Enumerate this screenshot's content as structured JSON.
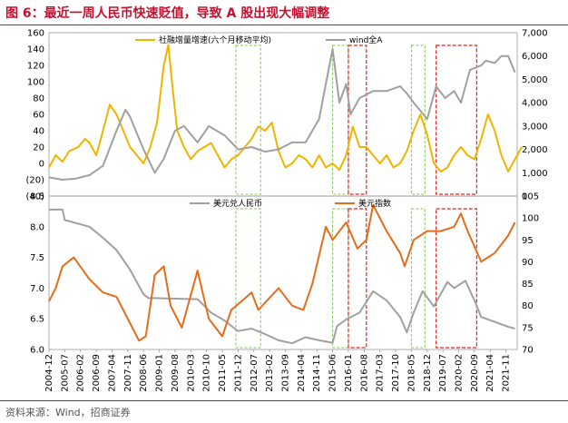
{
  "header": {
    "title": "图 6：最近一周人民币快速贬值，导致 A 股出现大幅调整"
  },
  "footer": {
    "source": "资料来源：Wind，招商证券"
  },
  "chart_data": [
    {
      "type": "line",
      "title": "",
      "legend": "top",
      "x_dates": [
        "2004-12",
        "2005-12",
        "2006-12",
        "2007-12",
        "2008-12",
        "2009-12",
        "2010-12",
        "2011-12",
        "2012-12",
        "2013-12",
        "2014-12",
        "2015-12",
        "2016-12",
        "2017-12",
        "2018-12",
        "2019-12",
        "2020-12",
        "2021-12"
      ],
      "y_left_lim": [
        -40,
        160
      ],
      "y_left_ticks": [
        "160",
        "140",
        "120",
        "100",
        "80",
        "60",
        "40",
        "20",
        "0",
        "(20)",
        "(40)"
      ],
      "y_right_lim": [
        0,
        7000
      ],
      "y_right_ticks": [
        "7,000",
        "6,000",
        "5,000",
        "4,000",
        "3,000",
        "2,000",
        "1,000",
        "0"
      ],
      "series": [
        {
          "name": "社融增量增速(六个月移动平均)",
          "axis": "left",
          "color": "#f0b400",
          "points": [
            [
              "2004-12",
              -5
            ],
            [
              "2005-03",
              10
            ],
            [
              "2005-06",
              2
            ],
            [
              "2005-09",
              15
            ],
            [
              "2006-01",
              20
            ],
            [
              "2006-04",
              30
            ],
            [
              "2006-06",
              25
            ],
            [
              "2006-09",
              10
            ],
            [
              "2006-12",
              40
            ],
            [
              "2007-03",
              72
            ],
            [
              "2007-06",
              60
            ],
            [
              "2007-09",
              40
            ],
            [
              "2007-12",
              20
            ],
            [
              "2008-03",
              10
            ],
            [
              "2008-06",
              0
            ],
            [
              "2008-09",
              20
            ],
            [
              "2008-12",
              50
            ],
            [
              "2009-03",
              120
            ],
            [
              "2009-05",
              145
            ],
            [
              "2009-07",
              90
            ],
            [
              "2009-09",
              40
            ],
            [
              "2009-12",
              20
            ],
            [
              "2010-03",
              5
            ],
            [
              "2010-06",
              15
            ],
            [
              "2010-09",
              20
            ],
            [
              "2010-12",
              25
            ],
            [
              "2011-03",
              10
            ],
            [
              "2011-06",
              -5
            ],
            [
              "2011-09",
              5
            ],
            [
              "2011-12",
              10
            ],
            [
              "2012-03",
              20
            ],
            [
              "2012-06",
              30
            ],
            [
              "2012-09",
              45
            ],
            [
              "2012-12",
              40
            ],
            [
              "2013-03",
              50
            ],
            [
              "2013-06",
              15
            ],
            [
              "2013-09",
              -5
            ],
            [
              "2013-12",
              0
            ],
            [
              "2014-03",
              10
            ],
            [
              "2014-06",
              5
            ],
            [
              "2014-09",
              -5
            ],
            [
              "2014-12",
              10
            ],
            [
              "2015-03",
              -5
            ],
            [
              "2015-06",
              0
            ],
            [
              "2015-09",
              -8
            ],
            [
              "2015-12",
              10
            ],
            [
              "2016-03",
              45
            ],
            [
              "2016-06",
              20
            ],
            [
              "2016-09",
              20
            ],
            [
              "2016-12",
              10
            ],
            [
              "2017-03",
              0
            ],
            [
              "2017-06",
              10
            ],
            [
              "2017-09",
              -5
            ],
            [
              "2017-12",
              0
            ],
            [
              "2018-03",
              15
            ],
            [
              "2018-06",
              40
            ],
            [
              "2018-09",
              60
            ],
            [
              "2018-12",
              35
            ],
            [
              "2019-03",
              0
            ],
            [
              "2019-06",
              -10
            ],
            [
              "2019-09",
              -5
            ],
            [
              "2019-12",
              10
            ],
            [
              "2020-03",
              20
            ],
            [
              "2020-06",
              10
            ],
            [
              "2020-09",
              5
            ],
            [
              "2020-12",
              30
            ],
            [
              "2021-03",
              60
            ],
            [
              "2021-06",
              40
            ],
            [
              "2021-09",
              10
            ],
            [
              "2021-12",
              -10
            ],
            [
              "2022-03",
              5
            ],
            [
              "2022-06",
              20
            ]
          ]
        },
        {
          "name": "wind全A",
          "axis": "right",
          "color": "#a0a0a0",
          "points": [
            [
              "2004-12",
              800
            ],
            [
              "2005-06",
              700
            ],
            [
              "2005-12",
              750
            ],
            [
              "2006-06",
              900
            ],
            [
              "2006-12",
              1300
            ],
            [
              "2007-06",
              2800
            ],
            [
              "2007-10",
              3700
            ],
            [
              "2007-12",
              3400
            ],
            [
              "2008-06",
              2000
            ],
            [
              "2008-11",
              1000
            ],
            [
              "2009-03",
              1600
            ],
            [
              "2009-08",
              2800
            ],
            [
              "2009-12",
              3000
            ],
            [
              "2010-06",
              2300
            ],
            [
              "2010-11",
              3000
            ],
            [
              "2011-06",
              2600
            ],
            [
              "2011-12",
              2000
            ],
            [
              "2012-06",
              2100
            ],
            [
              "2012-12",
              1900
            ],
            [
              "2013-06",
              2000
            ],
            [
              "2013-12",
              2300
            ],
            [
              "2014-06",
              2300
            ],
            [
              "2014-12",
              3300
            ],
            [
              "2015-03",
              4800
            ],
            [
              "2015-06",
              6300
            ],
            [
              "2015-09",
              4000
            ],
            [
              "2015-12",
              4800
            ],
            [
              "2016-02",
              3500
            ],
            [
              "2016-06",
              4200
            ],
            [
              "2016-12",
              4500
            ],
            [
              "2017-06",
              4500
            ],
            [
              "2017-12",
              4700
            ],
            [
              "2018-03",
              4400
            ],
            [
              "2018-06",
              4000
            ],
            [
              "2018-12",
              3300
            ],
            [
              "2019-04",
              4700
            ],
            [
              "2019-08",
              4200
            ],
            [
              "2019-12",
              4500
            ],
            [
              "2020-03",
              4000
            ],
            [
              "2020-07",
              5400
            ],
            [
              "2020-12",
              5600
            ],
            [
              "2021-02",
              5800
            ],
            [
              "2021-06",
              5700
            ],
            [
              "2021-09",
              6000
            ],
            [
              "2021-12",
              6000
            ],
            [
              "2022-03",
              5300
            ]
          ]
        }
      ],
      "green_bands": [
        [
          "2011-11",
          "2012-10"
        ],
        [
          "2015-06",
          "2016-01"
        ],
        [
          "2018-05",
          "2018-11"
        ]
      ],
      "red_bands": [
        [
          "2016-01",
          "2016-09"
        ],
        [
          "2019-04",
          "2020-10"
        ]
      ]
    },
    {
      "type": "line",
      "title": "",
      "legend": "top",
      "x_dates": [
        "2004-12",
        "2005-12",
        "2006-12",
        "2007-12",
        "2008-12",
        "2009-12",
        "2010-12",
        "2011-12",
        "2012-12",
        "2013-12",
        "2014-12",
        "2015-12",
        "2016-12",
        "2017-12",
        "2018-12",
        "2019-12",
        "2020-12",
        "2021-12"
      ],
      "x_tick_labels": [
        "2004-12",
        "2005-07",
        "2006-02",
        "2006-09",
        "2007-04",
        "2007-11",
        "2008-06",
        "2009-01",
        "2009-08",
        "2010-03",
        "2010-10",
        "2011-05",
        "2011-12",
        "2012-07",
        "2013-02",
        "2013-09",
        "2014-04",
        "2014-11",
        "2015-06",
        "2016-01",
        "2016-08",
        "2017-03",
        "2017-10",
        "2018-05",
        "2018-12",
        "2019-07",
        "2020-02",
        "2020-09",
        "2021-04",
        "2021-11"
      ],
      "y_left_lim": [
        6.0,
        8.5
      ],
      "y_left_ticks": [
        "8.5",
        "8.0",
        "7.5",
        "7.0",
        "6.5",
        "6.0"
      ],
      "y_right_lim": [
        70,
        105
      ],
      "y_right_ticks": [
        "105",
        "100",
        "95",
        "90",
        "85",
        "80",
        "75",
        "70"
      ],
      "series": [
        {
          "name": "美元兑人民币",
          "axis": "left",
          "color": "#a0a0a0",
          "points": [
            [
              "2004-12",
              8.28
            ],
            [
              "2005-06",
              8.28
            ],
            [
              "2005-07",
              8.11
            ],
            [
              "2006-06",
              8.0
            ],
            [
              "2006-12",
              7.82
            ],
            [
              "2007-06",
              7.62
            ],
            [
              "2007-12",
              7.3
            ],
            [
              "2008-06",
              6.9
            ],
            [
              "2008-08",
              6.84
            ],
            [
              "2010-06",
              6.82
            ],
            [
              "2010-12",
              6.6
            ],
            [
              "2011-06",
              6.47
            ],
            [
              "2011-12",
              6.3
            ],
            [
              "2012-06",
              6.34
            ],
            [
              "2012-12",
              6.25
            ],
            [
              "2013-06",
              6.15
            ],
            [
              "2013-12",
              6.1
            ],
            [
              "2014-06",
              6.2
            ],
            [
              "2014-12",
              6.15
            ],
            [
              "2015-06",
              6.11
            ],
            [
              "2015-08",
              6.38
            ],
            [
              "2015-12",
              6.49
            ],
            [
              "2016-06",
              6.6
            ],
            [
              "2016-12",
              6.95
            ],
            [
              "2017-06",
              6.8
            ],
            [
              "2017-12",
              6.53
            ],
            [
              "2018-03",
              6.28
            ],
            [
              "2018-06",
              6.6
            ],
            [
              "2018-10",
              6.95
            ],
            [
              "2019-03",
              6.7
            ],
            [
              "2019-09",
              7.1
            ],
            [
              "2019-12",
              7.0
            ],
            [
              "2020-05",
              7.12
            ],
            [
              "2020-09",
              6.8
            ],
            [
              "2020-12",
              6.53
            ],
            [
              "2021-06",
              6.45
            ],
            [
              "2021-12",
              6.37
            ],
            [
              "2022-03",
              6.34
            ]
          ]
        },
        {
          "name": "美元指数",
          "axis": "right",
          "color": "#e46c1a",
          "points": [
            [
              "2004-12",
              81
            ],
            [
              "2005-03",
              84
            ],
            [
              "2005-06",
              89
            ],
            [
              "2005-11",
              91
            ],
            [
              "2006-06",
              86
            ],
            [
              "2006-12",
              83
            ],
            [
              "2007-06",
              82
            ],
            [
              "2007-12",
              76
            ],
            [
              "2008-04",
              72
            ],
            [
              "2008-07",
              73
            ],
            [
              "2008-11",
              87
            ],
            [
              "2009-03",
              89
            ],
            [
              "2009-06",
              80
            ],
            [
              "2009-11",
              75
            ],
            [
              "2010-06",
              88
            ],
            [
              "2010-11",
              77
            ],
            [
              "2011-05",
              73
            ],
            [
              "2011-09",
              79
            ],
            [
              "2012-06",
              83
            ],
            [
              "2012-09",
              79
            ],
            [
              "2013-06",
              84
            ],
            [
              "2013-12",
              80
            ],
            [
              "2014-05",
              79
            ],
            [
              "2014-09",
              85
            ],
            [
              "2015-03",
              98
            ],
            [
              "2015-06",
              95
            ],
            [
              "2015-12",
              99
            ],
            [
              "2016-05",
              93
            ],
            [
              "2016-09",
              95
            ],
            [
              "2016-12",
              103
            ],
            [
              "2017-06",
              97
            ],
            [
              "2017-12",
              92
            ],
            [
              "2018-02",
              89
            ],
            [
              "2018-06",
              95
            ],
            [
              "2018-12",
              97
            ],
            [
              "2019-06",
              97
            ],
            [
              "2019-12",
              98
            ],
            [
              "2020-03",
              101
            ],
            [
              "2020-06",
              97
            ],
            [
              "2020-12",
              90
            ],
            [
              "2021-06",
              92
            ],
            [
              "2021-12",
              96
            ],
            [
              "2022-03",
              99
            ]
          ]
        }
      ],
      "green_bands": [
        [
          "2011-11",
          "2012-10"
        ],
        [
          "2015-06",
          "2016-01"
        ],
        [
          "2018-05",
          "2018-11"
        ]
      ],
      "red_bands": [
        [
          "2016-01",
          "2016-09"
        ],
        [
          "2019-04",
          "2020-10"
        ]
      ]
    }
  ]
}
